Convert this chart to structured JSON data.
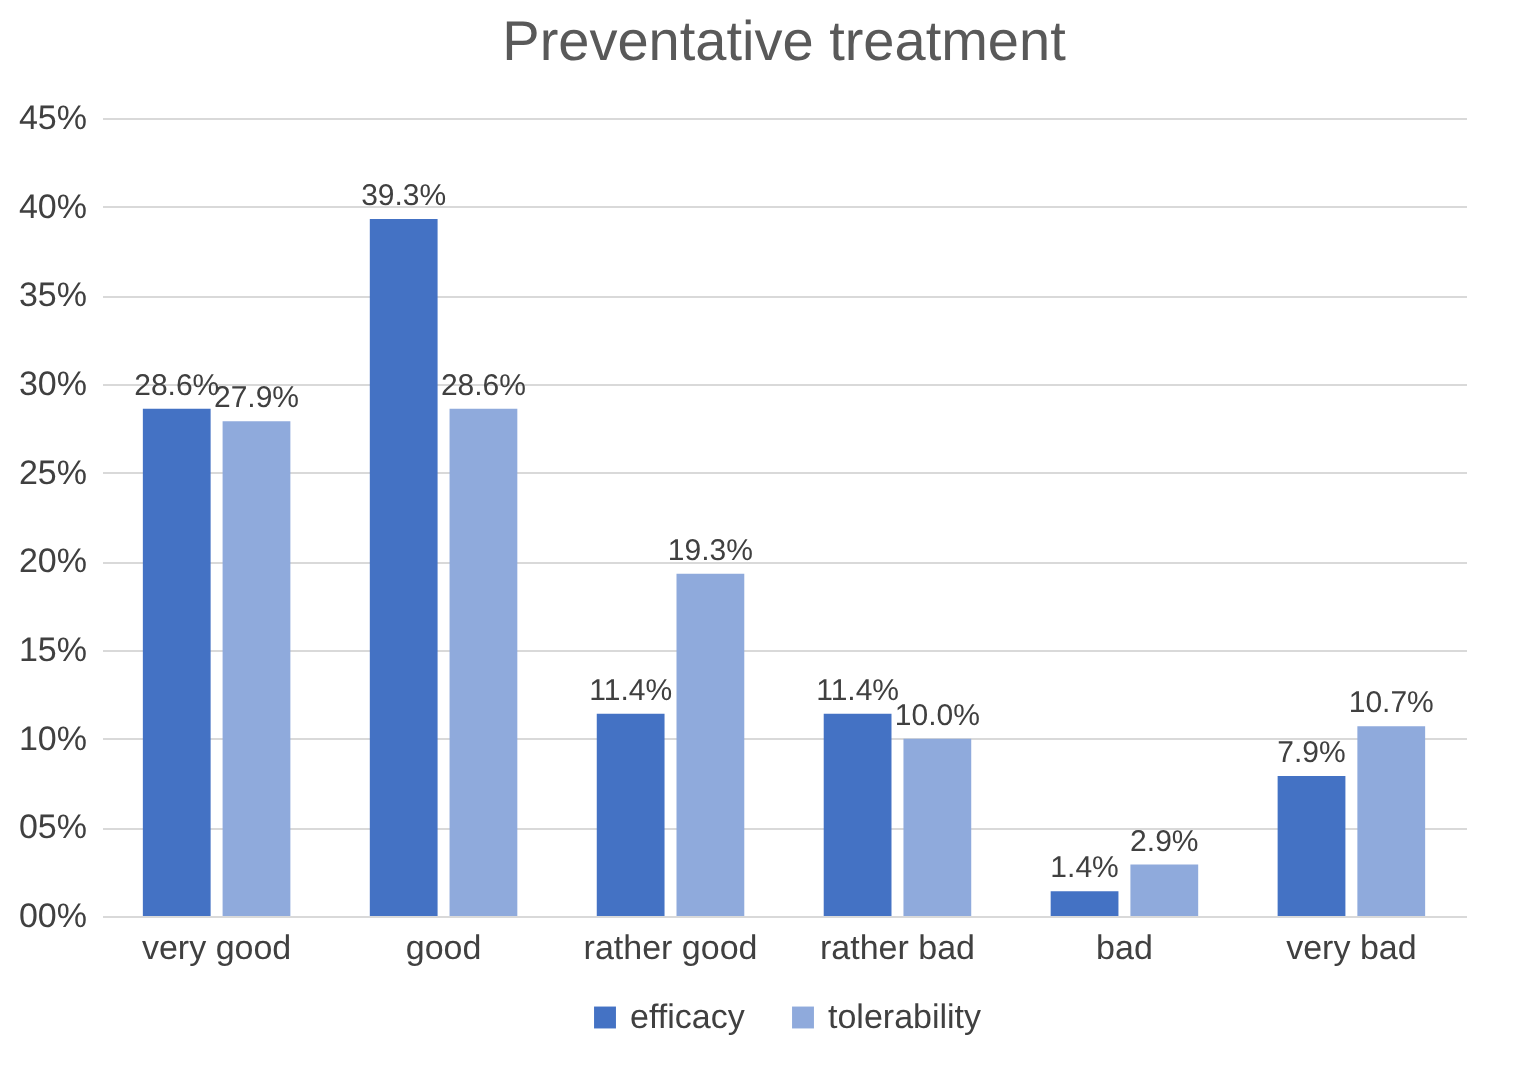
{
  "chart_data": {
    "type": "bar",
    "title": "Preventative treatment",
    "categories": [
      "very good",
      "good",
      "rather good",
      "rather bad",
      "bad",
      "very bad"
    ],
    "series": [
      {
        "name": "efficacy",
        "color": "#4472c4",
        "values": [
          28.6,
          39.3,
          11.4,
          11.4,
          1.4,
          7.9
        ],
        "value_labels": [
          "28.6%",
          "39.3%",
          "11.4%",
          "11.4%",
          "1.4%",
          "7.9%"
        ]
      },
      {
        "name": "tolerability",
        "color": "#8faadc",
        "values": [
          27.9,
          28.6,
          19.3,
          10.0,
          2.9,
          10.7
        ],
        "value_labels": [
          "27.9%",
          "28.6%",
          "19.3%",
          "10.0%",
          "2.9%",
          "10.7%"
        ]
      }
    ],
    "ylim": [
      0,
      45
    ],
    "yticks": [
      {
        "value": 0,
        "label": "00%"
      },
      {
        "value": 5,
        "label": "05%"
      },
      {
        "value": 10,
        "label": "10%"
      },
      {
        "value": 15,
        "label": "15%"
      },
      {
        "value": 20,
        "label": "20%"
      },
      {
        "value": 25,
        "label": "25%"
      },
      {
        "value": 30,
        "label": "30%"
      },
      {
        "value": 35,
        "label": "35%"
      },
      {
        "value": 40,
        "label": "40%"
      },
      {
        "value": 45,
        "label": "45%"
      }
    ],
    "grid": "y",
    "legend": "bottom"
  }
}
